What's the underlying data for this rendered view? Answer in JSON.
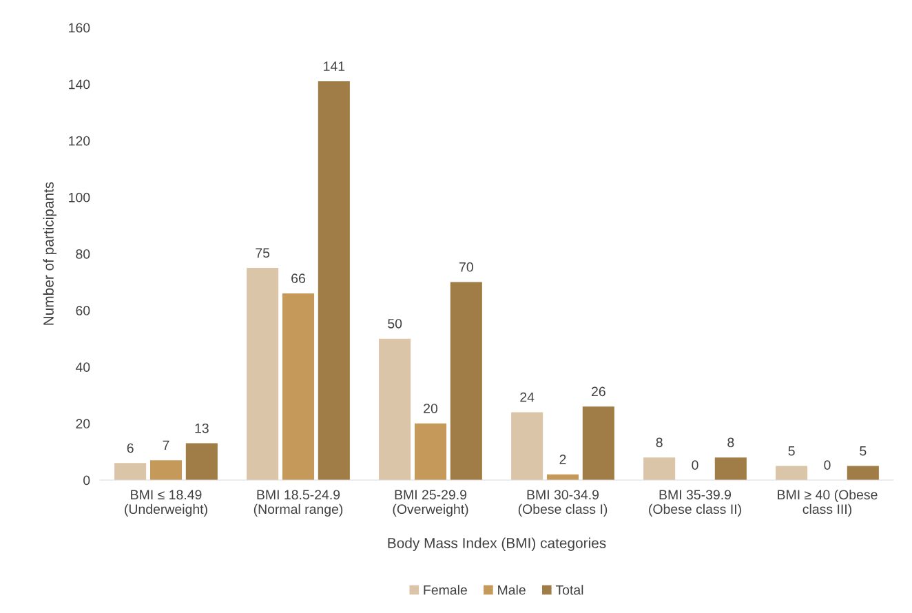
{
  "chart_data": {
    "type": "bar",
    "xlabel": "Body Mass Index (BMI) categories",
    "ylabel": "Number of participants",
    "categories": [
      "BMI ≤ 18.49\n(Underweight)",
      "BMI 18.5-24.9\n(Normal range)",
      "BMI 25-29.9\n(Overweight)",
      "BMI 30-34.9\n(Obese class I)",
      "BMI 35-39.9\n(Obese class II)",
      "BMI ≥ 40 (Obese\nclass III)"
    ],
    "series": [
      {
        "name": "Female",
        "color": "#dac5a8",
        "values": [
          6,
          75,
          50,
          24,
          8,
          5
        ]
      },
      {
        "name": "Male",
        "color": "#c4995a",
        "values": [
          7,
          66,
          20,
          2,
          0,
          0
        ]
      },
      {
        "name": "Total",
        "color": "#a07d47",
        "values": [
          13,
          141,
          70,
          26,
          8,
          5
        ]
      }
    ],
    "ylim": [
      0,
      160
    ],
    "yticks": [
      0,
      20,
      40,
      60,
      80,
      100,
      120,
      140,
      160
    ],
    "grid": false,
    "legend": "bottom",
    "data_labels": true
  }
}
